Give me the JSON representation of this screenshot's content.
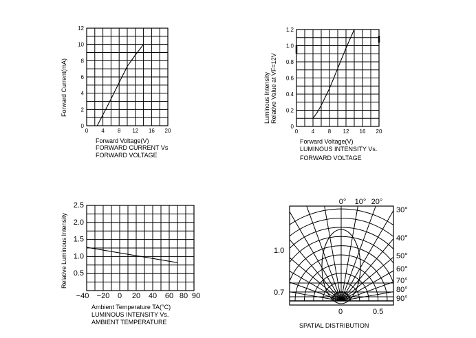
{
  "chart_data": [
    {
      "type": "line",
      "xlabel": "Forward Voltage(V)",
      "ylabel": "Forward Current(mA)",
      "caption": [
        "FORWARD CURRENT Vs",
        "FORWARD VOLTAGE"
      ],
      "xlim": [
        0,
        20
      ],
      "ylim": [
        0,
        12
      ],
      "x_ticks": [
        "0",
        "4",
        "8",
        "12",
        "16",
        "20"
      ],
      "y_ticks": [
        "0",
        "2",
        "4",
        "6",
        "8",
        "10",
        "12"
      ],
      "grid": true,
      "x": [
        2.6,
        5,
        8,
        10,
        12,
        14
      ],
      "y": [
        0,
        2.3,
        5.3,
        7.3,
        8.7,
        10.0
      ]
    },
    {
      "type": "line",
      "xlabel": "Forward Voltage(V)",
      "ylabel": [
        "Luminous Intensity",
        "Relative Value at VF=12V"
      ],
      "caption": [
        "LUMINOUS INTENSITY Vs.",
        "FORWARD VOLTAGE"
      ],
      "xlim": [
        0,
        20
      ],
      "ylim": [
        0,
        1.2
      ],
      "x_ticks": [
        "0",
        "4",
        "8",
        "12",
        "16",
        "20"
      ],
      "y_ticks": [
        "0",
        "0.2",
        "0.4",
        "0.6",
        "0.8",
        "1.0",
        "1.2"
      ],
      "grid": true,
      "x": [
        4,
        5,
        6,
        8,
        10,
        12,
        14
      ],
      "y": [
        0.1,
        0.17,
        0.26,
        0.47,
        0.72,
        0.97,
        1.2
      ]
    },
    {
      "type": "line",
      "xlabel": "Ambient Temperature TA(°C)",
      "ylabel": "Relative Luminous Intensity",
      "caption": [
        "LUMINOUS INTENSITY Vs.",
        "AMBIENT TEMPERATURE"
      ],
      "xlim": [
        -40,
        90
      ],
      "ylim": [
        0,
        2.5
      ],
      "x_ticks": [
        "−40",
        "−20",
        "0",
        "20",
        "40",
        "60",
        "80",
        "90"
      ],
      "y_ticks": [
        "0.5",
        "1.0",
        "1.5",
        "2.0",
        "2.5"
      ],
      "grid": true,
      "x": [
        -40,
        70
      ],
      "y": [
        1.27,
        0.82
      ]
    },
    {
      "type": "polar",
      "caption": "SPATIAL DISTRIBUTION",
      "angle_labels": [
        "0°",
        "10°",
        "20°",
        "30°",
        "40°",
        "50°",
        "60°",
        "70°",
        "80°",
        "90°"
      ],
      "radial_labels": [
        "1.0",
        "0.7"
      ],
      "bottom_labels": [
        "0",
        "0.5"
      ]
    }
  ]
}
